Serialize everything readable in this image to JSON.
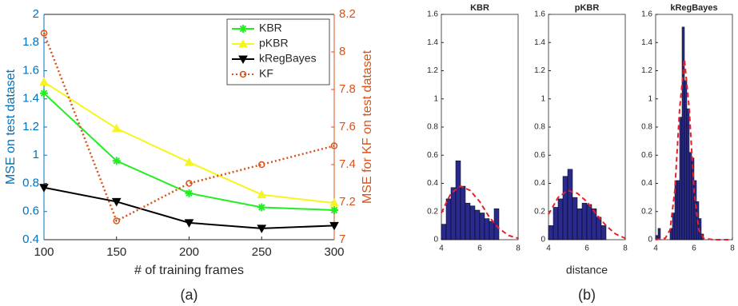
{
  "chart_data": [
    {
      "type": "line",
      "caption": "(a)",
      "xlabel": "# of training frames",
      "ylabel": "MSE on test dataset",
      "y2label": "MSE for KF on test dataset",
      "ylabel_color": "#0072bd",
      "y2label_color": "#d95319",
      "x": [
        100,
        150,
        200,
        250,
        300
      ],
      "xlim": [
        100,
        300
      ],
      "xticks": [
        100,
        150,
        200,
        250,
        300
      ],
      "ylim": [
        0.4,
        2
      ],
      "yticks": [
        0.4,
        0.6,
        0.8,
        1,
        1.2,
        1.4,
        1.6,
        1.8,
        2
      ],
      "y2lim": [
        7,
        8.2
      ],
      "y2ticks": [
        7,
        7.2,
        7.4,
        7.6,
        7.8,
        8,
        8.2
      ],
      "legend": "top-right",
      "series": [
        {
          "name": "KBR",
          "color": "#22ee22",
          "marker": "star",
          "values": [
            1.44,
            0.96,
            0.73,
            0.63,
            0.61
          ]
        },
        {
          "name": "pKBR",
          "color": "#f5f520",
          "marker": "triangle-up",
          "values": [
            1.52,
            1.19,
            0.95,
            0.72,
            0.66
          ]
        },
        {
          "name": "kRegBayes",
          "color": "#000000",
          "marker": "triangle-down",
          "values": [
            0.77,
            0.67,
            0.52,
            0.48,
            0.5
          ]
        },
        {
          "name": "KF",
          "color": "#d95319",
          "marker": "circle",
          "dash": "dotted",
          "axis": "y2",
          "values": [
            8.1,
            7.1,
            7.3,
            7.4,
            7.5
          ]
        }
      ]
    },
    {
      "type": "histogram",
      "title": "KBR",
      "color": "#2a2a8c",
      "bins": [
        4,
        4.25,
        4.5,
        4.75,
        5,
        5.25,
        5.5,
        5.75,
        6,
        6.25,
        6.5,
        6.75,
        7
      ],
      "counts": [
        0.11,
        0.29,
        0.37,
        0.56,
        0.38,
        0.26,
        0.24,
        0.21,
        0.19,
        0.15,
        0.13,
        0.22
      ],
      "xlim": [
        4,
        8
      ],
      "xticks": [
        4,
        6,
        8
      ],
      "ylim": [
        0,
        1.6
      ],
      "yticks": [
        0,
        0.2,
        0.4,
        0.6,
        0.8,
        1,
        1.2,
        1.4,
        1.6
      ],
      "fit": {
        "color": "#e8202a",
        "x": [
          4,
          4.5,
          5,
          5.5,
          6,
          6.5,
          7,
          7.5,
          8
        ],
        "values": [
          0.19,
          0.33,
          0.38,
          0.35,
          0.27,
          0.16,
          0.08,
          0.03,
          0.01
        ]
      }
    },
    {
      "type": "histogram",
      "title": "pKBR",
      "caption": "(b)",
      "xlabel": "distance",
      "color": "#2a2a8c",
      "bins": [
        4,
        4.25,
        4.5,
        4.75,
        5,
        5.25,
        5.5,
        5.75,
        6,
        6.25,
        6.5,
        6.75,
        7
      ],
      "counts": [
        0.1,
        0.23,
        0.29,
        0.45,
        0.5,
        0.3,
        0.22,
        0.26,
        0.25,
        0.22,
        0.16,
        0.1
      ],
      "xlim": [
        4,
        8
      ],
      "xticks": [
        4,
        6,
        8
      ],
      "ylim": [
        0,
        1.6
      ],
      "yticks": [
        0,
        0.2,
        0.4,
        0.6,
        0.8,
        1,
        1.2,
        1.4,
        1.6
      ],
      "fit": {
        "color": "#e8202a",
        "x": [
          4,
          4.5,
          5,
          5.5,
          6,
          6.5,
          7,
          7.5,
          8
        ],
        "values": [
          0.18,
          0.3,
          0.35,
          0.33,
          0.27,
          0.18,
          0.1,
          0.04,
          0.01
        ]
      }
    },
    {
      "type": "histogram",
      "title": "kRegBayes",
      "color": "#2a2a8c",
      "bins": [
        4,
        4.125,
        4.25,
        4.375,
        4.5,
        4.625,
        4.75,
        4.875,
        5,
        5.125,
        5.25,
        5.375,
        5.5,
        5.625,
        5.75,
        5.875,
        6,
        6.125,
        6.25,
        6.375,
        6.5,
        6.625,
        6.75
      ],
      "counts": [
        0.03,
        0.08,
        0,
        0,
        0,
        0,
        0.08,
        0.19,
        0.42,
        0.42,
        0.87,
        1.51,
        1.13,
        0.93,
        0.62,
        0.58,
        0.42,
        0.27,
        0.15,
        0.04,
        0,
        0
      ],
      "xlim": [
        4,
        8
      ],
      "xticks": [
        4,
        6,
        8
      ],
      "ylim": [
        0,
        1.6
      ],
      "yticks": [
        0,
        0.2,
        0.4,
        0.6,
        0.8,
        1,
        1.2,
        1.4,
        1.6
      ],
      "fit": {
        "color": "#e8202a",
        "x": [
          4,
          4.5,
          4.75,
          5,
          5.25,
          5.5,
          5.75,
          6,
          6.25,
          6.5,
          7,
          8
        ],
        "values": [
          0,
          0.01,
          0.07,
          0.35,
          0.93,
          1.28,
          0.93,
          0.35,
          0.07,
          0.01,
          0,
          0
        ]
      }
    }
  ]
}
